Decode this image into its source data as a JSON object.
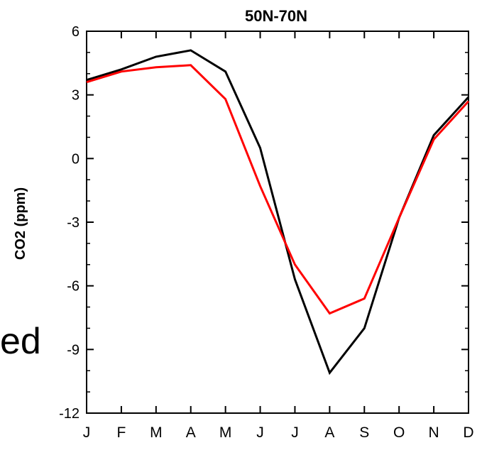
{
  "background_text": "ed",
  "chart_data": {
    "type": "line",
    "title": "50N-70N",
    "xlabel": "",
    "ylabel": "CO2 (ppm)",
    "categories": [
      "J",
      "F",
      "M",
      "A",
      "M",
      "J",
      "J",
      "A",
      "S",
      "O",
      "N",
      "D"
    ],
    "ylim": [
      -12,
      6
    ],
    "yticks": [
      6,
      3,
      0,
      -3,
      -6,
      -9,
      -12
    ],
    "grid": false,
    "series": [
      {
        "color": "#000000",
        "values": [
          3.7,
          4.2,
          4.8,
          5.1,
          4.1,
          0.5,
          -5.7,
          -10.1,
          -8.0,
          -2.8,
          1.1,
          2.9
        ]
      },
      {
        "color": "#ff0000",
        "values": [
          3.6,
          4.1,
          4.3,
          4.4,
          2.8,
          -1.3,
          -5.0,
          -7.3,
          -6.6,
          -2.8,
          0.9,
          2.7
        ]
      }
    ]
  }
}
